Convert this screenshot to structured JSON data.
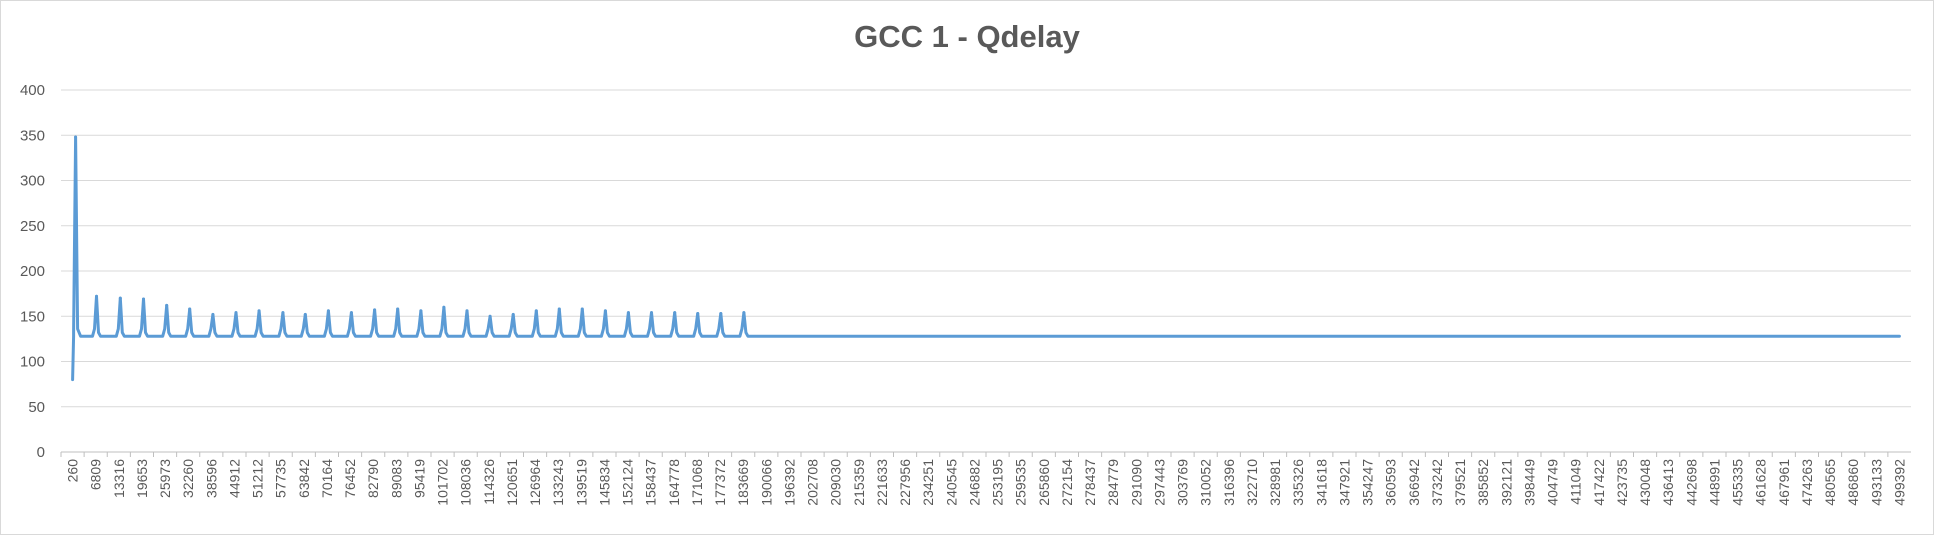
{
  "chart_data": {
    "type": "line",
    "title": "GCC 1 - Qdelay",
    "xlabel": "",
    "ylabel": "",
    "ylim": [
      0,
      400
    ],
    "yticks": [
      0,
      50,
      100,
      150,
      200,
      250,
      300,
      350,
      400
    ],
    "grid": true,
    "legend": "none",
    "color": "#5b9bd5",
    "categories": [
      "260",
      "6809",
      "13316",
      "19653",
      "25973",
      "32260",
      "38596",
      "44912",
      "51212",
      "57735",
      "63842",
      "70164",
      "76452",
      "82790",
      "89083",
      "95419",
      "101702",
      "108036",
      "114326",
      "120651",
      "126964",
      "133243",
      "139519",
      "145834",
      "152124",
      "158437",
      "164778",
      "171068",
      "177372",
      "183669",
      "190066",
      "196392",
      "202708",
      "209030",
      "215359",
      "221633",
      "227956",
      "234251",
      "240545",
      "246882",
      "253195",
      "259535",
      "265860",
      "272154",
      "278437",
      "284779",
      "291090",
      "297443",
      "303769",
      "310052",
      "316396",
      "322710",
      "328981",
      "335326",
      "341618",
      "347921",
      "354247",
      "360593",
      "366942",
      "373242",
      "379521",
      "385852",
      "392121",
      "398449",
      "404749",
      "411049",
      "417422",
      "423735",
      "430048",
      "436413",
      "442698",
      "448991",
      "455335",
      "461628",
      "467961",
      "474263",
      "480565",
      "486860",
      "493133",
      "499392"
    ],
    "baseline": 128,
    "start_dip": 80,
    "peaks": [
      {
        "x": 260,
        "y": 348
      },
      {
        "x": 6809,
        "y": 172
      },
      {
        "x": 13316,
        "y": 170
      },
      {
        "x": 19653,
        "y": 169
      },
      {
        "x": 25973,
        "y": 162
      },
      {
        "x": 32260,
        "y": 158
      },
      {
        "x": 38596,
        "y": 152
      },
      {
        "x": 44912,
        "y": 154
      },
      {
        "x": 51212,
        "y": 156
      },
      {
        "x": 57735,
        "y": 154
      },
      {
        "x": 63842,
        "y": 152
      },
      {
        "x": 70164,
        "y": 156
      },
      {
        "x": 76452,
        "y": 154
      },
      {
        "x": 82790,
        "y": 157
      },
      {
        "x": 89083,
        "y": 158
      },
      {
        "x": 95419,
        "y": 156
      },
      {
        "x": 101702,
        "y": 160
      },
      {
        "x": 108036,
        "y": 156
      },
      {
        "x": 114326,
        "y": 150
      },
      {
        "x": 120651,
        "y": 152
      },
      {
        "x": 126964,
        "y": 156
      },
      {
        "x": 133243,
        "y": 158
      },
      {
        "x": 139519,
        "y": 158
      },
      {
        "x": 145834,
        "y": 156
      },
      {
        "x": 152124,
        "y": 154
      },
      {
        "x": 158437,
        "y": 154
      },
      {
        "x": 164778,
        "y": 154
      },
      {
        "x": 171068,
        "y": 153
      },
      {
        "x": 177372,
        "y": 153
      },
      {
        "x": 183669,
        "y": 154
      }
    ]
  }
}
